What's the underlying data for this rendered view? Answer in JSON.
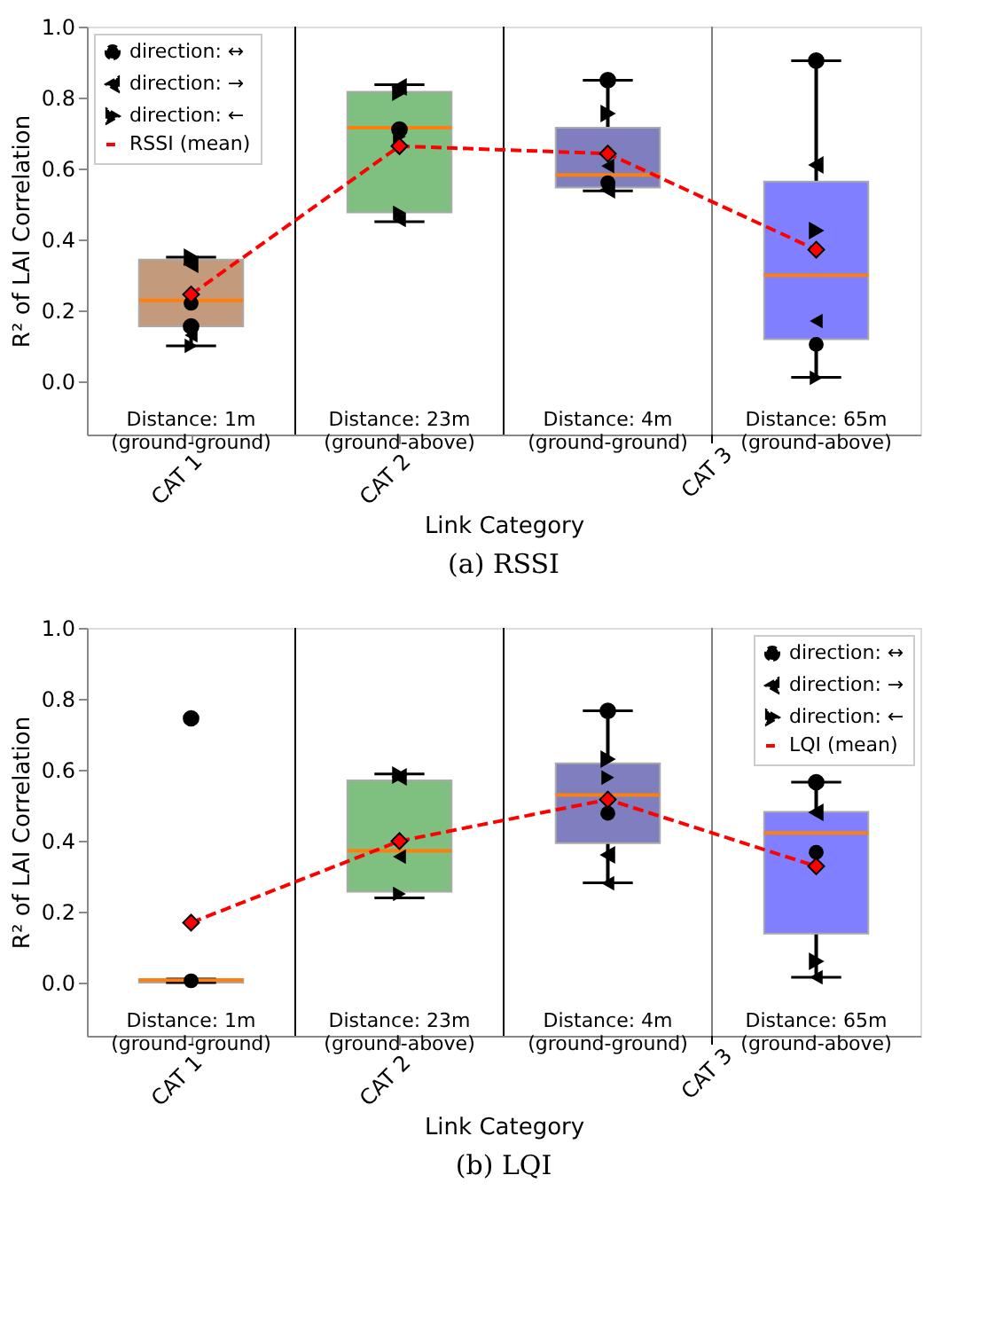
{
  "chart_data": [
    {
      "type": "box",
      "title": "(a) RSSI",
      "xlabel": "Link Category",
      "ylabel": "R² of LAI Correlation",
      "categories": [
        "CAT 1",
        "CAT 2",
        null,
        null
      ],
      "ylim": [
        -0.15,
        1.0
      ],
      "yticks": [
        {
          "value": 0,
          "label": "0.0"
        },
        0.2,
        0.4,
        0.6,
        0.8,
        {
          "value": 1,
          "label": "1.0"
        }
      ],
      "legend": "top left",
      "annotations": [
        "Distance: 1m\n(ground-ground)",
        "Distance: 23m\n(ground-above)",
        "Distance: 4m\n(ground-ground)",
        "Distance: 65m\n(ground-above)",
        "CAT 3"
      ],
      "series": [
        {
          "colors": [
            "#c49a7c",
            "#7fbf7f",
            "#7f7fbf",
            "#7f7fff"
          ],
          "boxes": [
            {
              "low": 0.1,
              "q1": 0.155,
              "median": 0.228,
              "q3": 0.343,
              "high": 0.35
            },
            {
              "low": 0.45,
              "q1": 0.476,
              "median": 0.715,
              "q3": 0.816,
              "high": 0.836
            },
            {
              "low": 0.537,
              "q1": 0.546,
              "median": 0.582,
              "q3": 0.715,
              "high": 0.849
            },
            {
              "low": 0.011,
              "q1": 0.119,
              "median": 0.299,
              "q3": 0.563,
              "high": 0.904
            }
          ]
        },
        {
          "type": "scatter",
          "name": "direction: ↔",
          "color": "#000000",
          "marker": "circle",
          "values": [
            0.155,
            0.71,
            0.849,
            0.904
          ]
        },
        {
          "type": "scatter",
          "color": "#000000",
          "marker": "circle",
          "values": [
            0.22,
            null,
            0.56,
            0.104
          ]
        },
        {
          "type": "scatter",
          "name": "direction: →",
          "color": "#000000",
          "marker": "triangle-left",
          "values": [
            0.33,
            0.83,
            0.54,
            0.61
          ]
        },
        {
          "type": "scatter",
          "color": "#000000",
          "marker": "triangle-left",
          "values": [
            0.13,
            0.455,
            0.607,
            0.17
          ]
        },
        {
          "type": "scatter",
          "name": "direction: ←",
          "color": "#000000",
          "marker": "triangle-right",
          "values": [
            0.35,
            0.815,
            0.755,
            0.425
          ]
        },
        {
          "type": "scatter",
          "color": "#000000",
          "marker": "triangle-right",
          "values": [
            0.1,
            0.475,
            null,
            0.01
          ]
        },
        {
          "type": "scatter",
          "color": "#000000",
          "marker": "triangle-right",
          "values": [
            null,
            0.69,
            null,
            null
          ]
        },
        {
          "type": "line",
          "name": "RSSI (mean)",
          "color": "#ff0000",
          "line_style": "dashed",
          "marker": "diamond",
          "values": [
            0.245,
            0.663,
            0.642,
            0.371
          ]
        }
      ]
    },
    {
      "type": "box",
      "title": "(b) LQI",
      "xlabel": "Link Category",
      "ylabel": "R² of LAI Correlation",
      "categories": [
        "CAT 1",
        "CAT 2",
        null,
        null
      ],
      "ylim": [
        -0.15,
        1.0
      ],
      "yticks": [
        {
          "value": 0,
          "label": "0.0"
        },
        0.2,
        0.4,
        0.6,
        0.8,
        {
          "value": 1,
          "label": "1.0"
        }
      ],
      "legend": "top right",
      "annotations": [
        "Distance: 1m\n(ground-ground)",
        "Distance: 23m\n(ground-above)",
        "Distance: 4m\n(ground-ground)",
        "Distance: 65m\n(ground-above)",
        "CAT 3"
      ],
      "series": [
        {
          "colors": [
            "#c49a7c",
            "#7fbf7f",
            "#7f7fbf",
            "#7f7fff"
          ],
          "boxes": [
            {
              "low": 0.0,
              "q1": 0.0,
              "median": 0.007,
              "q3": 0.01,
              "high": 0.01
            },
            {
              "low": 0.239,
              "q1": 0.256,
              "median": 0.372,
              "q3": 0.57,
              "high": 0.588
            },
            {
              "low": 0.281,
              "q1": 0.393,
              "median": 0.529,
              "q3": 0.618,
              "high": 0.766
            },
            {
              "low": 0.015,
              "q1": 0.138,
              "median": 0.422,
              "q3": 0.481,
              "high": 0.565
            }
          ]
        },
        {
          "type": "scatter",
          "name": "direction: ↔",
          "color": "#000000",
          "marker": "circle",
          "values": [
            0.745,
            null,
            0.766,
            0.565
          ]
        },
        {
          "type": "scatter",
          "color": "#000000",
          "marker": "circle",
          "values": [
            0.005,
            null,
            0.477,
            0.367
          ]
        },
        {
          "type": "scatter",
          "name": "direction: →",
          "color": "#000000",
          "marker": "triangle-left",
          "values": [
            null,
            0.58,
            0.36,
            0.48
          ]
        },
        {
          "type": "scatter",
          "color": "#000000",
          "marker": "triangle-left",
          "values": [
            null,
            0.355,
            0.28,
            0.015
          ]
        },
        {
          "type": "scatter",
          "name": "direction: ←",
          "color": "#000000",
          "marker": "triangle-right",
          "values": [
            null,
            0.585,
            0.63,
            0.06
          ]
        },
        {
          "type": "scatter",
          "color": "#000000",
          "marker": "triangle-right",
          "values": [
            null,
            0.25,
            0.578,
            null
          ]
        },
        {
          "type": "line",
          "name": "LQI (mean)",
          "color": "#ff0000",
          "line_style": "dashed",
          "marker": "diamond",
          "values": [
            0.169,
            0.399,
            0.516,
            0.328
          ]
        }
      ]
    }
  ]
}
